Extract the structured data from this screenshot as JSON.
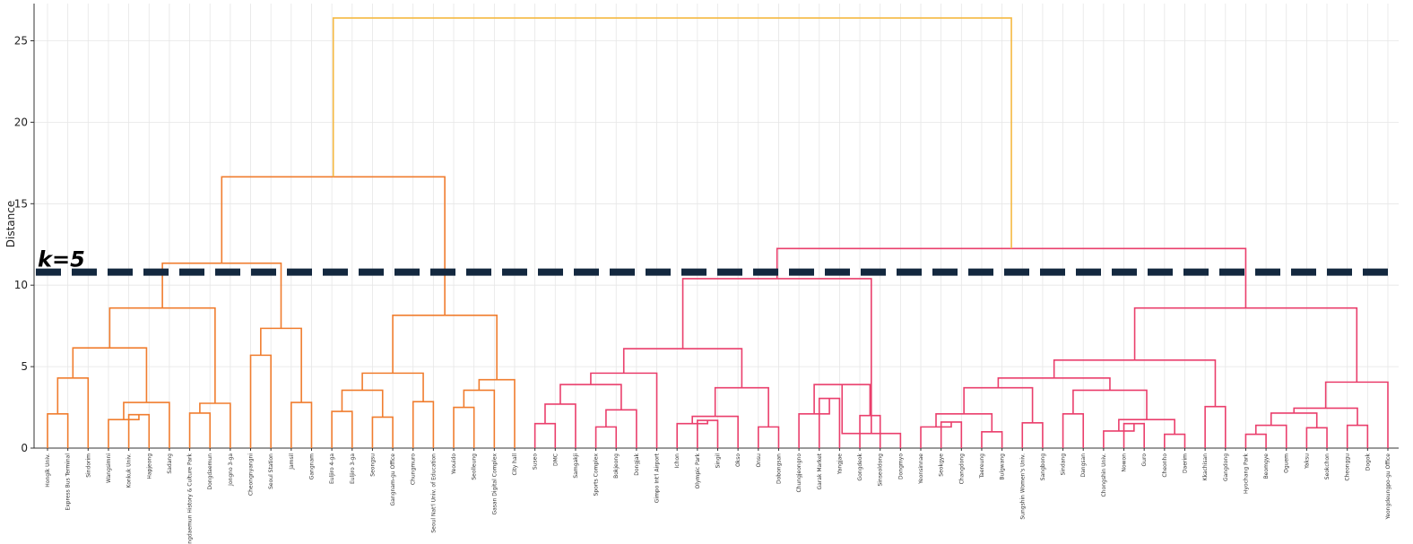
{
  "chart_data": {
    "type": "dendrogram",
    "ylabel": "Distance",
    "ylim": [
      0,
      27
    ],
    "yticks": [
      0,
      5,
      10,
      15,
      20,
      25
    ],
    "grid": true,
    "threshold": {
      "value": 10.8,
      "label": "k=5",
      "color": "#13283f"
    },
    "colors": {
      "root": "#f5b942",
      "orange_cluster": "#f07d2f",
      "pink_cluster": "#ea3f6c",
      "axis": "#333333",
      "grid": "#e6e6e6"
    },
    "leaves": [
      "Hongik Univ.",
      "Express Bus Terminal",
      "Sindorim",
      "Wangsimni",
      "Konkuk Univ.",
      "Hapjeong",
      "Sadang",
      "Dongdaemun History & Culture Park",
      "Dongdaemun",
      "Jongno 3-ga",
      "Cheongnyangni",
      "Seoul Station",
      "Jamsil",
      "Gangnam",
      "Euljiro 4-ga",
      "Euljiro 3-ga",
      "Seongsu",
      "Gangnam-gu Office",
      "Chungmuro",
      "Seoul Nat'l Univ. of Education",
      "Yeouido",
      "Seolleung",
      "Gasan Digital Complex",
      "City hall",
      "Suseo",
      "DMC",
      "Samgakji",
      "Sports Complex",
      "Bokjeong",
      "Dongjak",
      "Gimpo Int'l Airport",
      "Ichon",
      "Olympic Park",
      "Singil",
      "Okso",
      "Onsu",
      "Dobongsan",
      "Chungjeongno",
      "Garak Market",
      "Yangjae",
      "Gongdeok",
      "Sinseoldong",
      "Dongmyo",
      "Yeonsinnae",
      "Seokgye",
      "Changdong",
      "Taereung",
      "Bulgwang",
      "Sungshin Women's Univ.",
      "Sangbong",
      "Sindang",
      "Dangsan",
      "Chongshin Univ.",
      "Nowon",
      "Guro",
      "Cheonho",
      "Daerim",
      "Kkachisan",
      "Gangdong",
      "Hyochang Park",
      "Beomgye",
      "Oguem",
      "Yaksu",
      "Seokchon",
      "Cheonggu",
      "Dogok",
      "Yeongdeungpo-gu Office"
    ],
    "merges": [
      {
        "a": "L0",
        "b": "L1",
        "h": 2.1,
        "c": "orange_cluster"
      },
      {
        "a": "N0",
        "b": "L2",
        "h": 4.3,
        "c": "orange_cluster"
      },
      {
        "a": "L4",
        "b": "L5",
        "h": 2.05,
        "c": "orange_cluster"
      },
      {
        "a": "L3",
        "b": "N2",
        "h": 1.75,
        "c": "orange_cluster"
      },
      {
        "a": "N3",
        "b": "L6",
        "h": 2.8,
        "c": "orange_cluster"
      },
      {
        "a": "N1",
        "b": "N4",
        "h": 6.15,
        "c": "orange_cluster"
      },
      {
        "a": "L7",
        "b": "L8",
        "h": 2.15,
        "c": "orange_cluster"
      },
      {
        "a": "N6",
        "b": "L9",
        "h": 2.75,
        "c": "orange_cluster"
      },
      {
        "a": "N5",
        "b": "N7",
        "h": 8.6,
        "c": "orange_cluster"
      },
      {
        "a": "L10",
        "b": "L11",
        "h": 5.7,
        "c": "orange_cluster"
      },
      {
        "a": "L12",
        "b": "L13",
        "h": 2.8,
        "c": "orange_cluster"
      },
      {
        "a": "N9",
        "b": "N10",
        "h": 7.35,
        "c": "orange_cluster"
      },
      {
        "a": "N8",
        "b": "N11",
        "h": 11.35,
        "c": "orange_cluster"
      },
      {
        "a": "L14",
        "b": "L15",
        "h": 2.25,
        "c": "orange_cluster"
      },
      {
        "a": "L16",
        "b": "L17",
        "h": 1.9,
        "c": "orange_cluster"
      },
      {
        "a": "N13",
        "b": "N14",
        "h": 3.55,
        "c": "orange_cluster"
      },
      {
        "a": "L18",
        "b": "L19",
        "h": 2.85,
        "c": "orange_cluster"
      },
      {
        "a": "N15",
        "b": "N16",
        "h": 4.6,
        "c": "orange_cluster"
      },
      {
        "a": "L20",
        "b": "L21",
        "h": 2.5,
        "c": "orange_cluster"
      },
      {
        "a": "N18",
        "b": "L22",
        "h": 3.55,
        "c": "orange_cluster"
      },
      {
        "a": "N19",
        "b": "L23",
        "h": 4.2,
        "c": "orange_cluster"
      },
      {
        "a": "N17",
        "b": "N20",
        "h": 8.15,
        "c": "orange_cluster"
      },
      {
        "a": "N12",
        "b": "N21",
        "h": 16.65,
        "c": "orange_cluster"
      },
      {
        "a": "L24",
        "b": "L25",
        "h": 1.5,
        "c": "pink_cluster"
      },
      {
        "a": "N23",
        "b": "L26",
        "h": 2.7,
        "c": "pink_cluster"
      },
      {
        "a": "L27",
        "b": "L28",
        "h": 1.3,
        "c": "pink_cluster"
      },
      {
        "a": "N25",
        "b": "L29",
        "h": 2.35,
        "c": "pink_cluster"
      },
      {
        "a": "N24",
        "b": "N26",
        "h": 3.9,
        "c": "pink_cluster"
      },
      {
        "a": "N27",
        "b": "L30",
        "h": 4.6,
        "c": "pink_cluster"
      },
      {
        "a": "L32",
        "b": "L33",
        "h": 1.7,
        "c": "pink_cluster"
      },
      {
        "a": "L31",
        "b": "N29",
        "h": 1.5,
        "c": "pink_cluster"
      },
      {
        "a": "N30",
        "b": "L34",
        "h": 1.95,
        "c": "pink_cluster"
      },
      {
        "a": "L35",
        "b": "L36",
        "h": 1.3,
        "c": "pink_cluster"
      },
      {
        "a": "N31",
        "b": "N32",
        "h": 3.7,
        "c": "pink_cluster"
      },
      {
        "a": "N28",
        "b": "N33",
        "h": 6.1,
        "c": "pink_cluster"
      },
      {
        "a": "L38",
        "b": "L39",
        "h": 3.05,
        "c": "pink_cluster"
      },
      {
        "a": "L37",
        "b": "N35",
        "h": 2.1,
        "c": "pink_cluster"
      },
      {
        "a": "L40",
        "b": "L41",
        "h": 2.0,
        "c": "pink_cluster"
      },
      {
        "a": "N36",
        "b": "N37",
        "h": 3.9,
        "c": "pink_cluster"
      },
      {
        "a": "L42",
        "b": "N38",
        "h": 0.9,
        "c": "pink_cluster"
      },
      {
        "a": "N34",
        "b": "N39",
        "h": 10.4,
        "c": "pink_cluster"
      },
      {
        "a": "L44",
        "b": "L45",
        "h": 1.6,
        "c": "pink_cluster"
      },
      {
        "a": "L43",
        "b": "N41",
        "h": 1.3,
        "c": "pink_cluster"
      },
      {
        "a": "L46",
        "b": "L47",
        "h": 1.0,
        "c": "pink_cluster"
      },
      {
        "a": "N42",
        "b": "N43",
        "h": 2.1,
        "c": "pink_cluster"
      },
      {
        "a": "L48",
        "b": "L49",
        "h": 1.55,
        "c": "pink_cluster"
      },
      {
        "a": "N44",
        "b": "N45",
        "h": 3.7,
        "c": "pink_cluster"
      },
      {
        "a": "L50",
        "b": "L51",
        "h": 2.1,
        "c": "pink_cluster"
      },
      {
        "a": "L53",
        "b": "L54",
        "h": 1.5,
        "c": "pink_cluster"
      },
      {
        "a": "L52",
        "b": "N48",
        "h": 1.05,
        "c": "pink_cluster"
      },
      {
        "a": "L55",
        "b": "L56",
        "h": 0.85,
        "c": "pink_cluster"
      },
      {
        "a": "N49",
        "b": "N50",
        "h": 1.75,
        "c": "pink_cluster"
      },
      {
        "a": "N47",
        "b": "N51",
        "h": 3.55,
        "c": "pink_cluster"
      },
      {
        "a": "N46",
        "b": "N52",
        "h": 4.3,
        "c": "pink_cluster"
      },
      {
        "a": "L57",
        "b": "L58",
        "h": 2.55,
        "c": "pink_cluster"
      },
      {
        "a": "N53",
        "b": "N54",
        "h": 5.4,
        "c": "pink_cluster"
      },
      {
        "a": "L59",
        "b": "L60",
        "h": 0.85,
        "c": "pink_cluster"
      },
      {
        "a": "N56",
        "b": "L61",
        "h": 1.4,
        "c": "pink_cluster"
      },
      {
        "a": "L62",
        "b": "L63",
        "h": 1.25,
        "c": "pink_cluster"
      },
      {
        "a": "N57",
        "b": "N58",
        "h": 2.15,
        "c": "pink_cluster"
      },
      {
        "a": "L64",
        "b": "L65",
        "h": 1.4,
        "c": "pink_cluster"
      },
      {
        "a": "N59",
        "b": "N60",
        "h": 2.45,
        "c": "pink_cluster"
      },
      {
        "a": "N61",
        "b": "L66",
        "h": 4.05,
        "c": "pink_cluster"
      },
      {
        "a": "N55",
        "b": "N62",
        "h": 8.6,
        "c": "pink_cluster"
      },
      {
        "a": "N40",
        "b": "N63",
        "h": 12.25,
        "c": "pink_cluster"
      },
      {
        "a": "N22",
        "b": "N64",
        "h": 26.4,
        "c": "root"
      }
    ]
  }
}
